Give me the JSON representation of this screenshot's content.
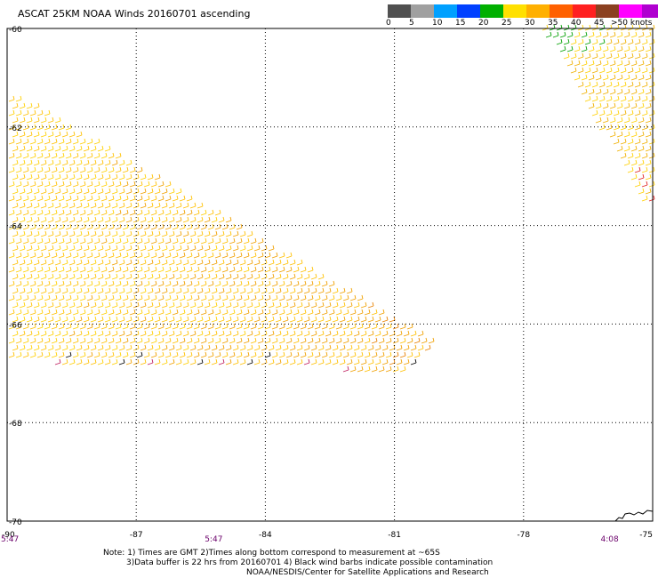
{
  "title": "ASCAT 25KM NOAA Winds 20160701 ascending",
  "legend": {
    "colors": [
      "#505050",
      "#a0a0a0",
      "#00a0ff",
      "#0040ff",
      "#00b000",
      "#ffe000",
      "#ffb000",
      "#ff6000",
      "#ff2020",
      "#8b4020",
      "#ff00ff",
      "#b000d0",
      "#4000a0"
    ],
    "labels": [
      "0",
      "5",
      "10",
      "15",
      "20",
      "25",
      "30",
      "35",
      "40",
      "45",
      ">50 knots"
    ],
    "label_values": [
      0,
      5,
      10,
      15,
      20,
      25,
      30,
      35,
      40,
      45,
      50
    ]
  },
  "map": {
    "lat_labels": [
      "-60",
      "-62",
      "-64",
      "-66",
      "-68",
      "-70"
    ],
    "lon_labels": [
      "-90",
      "-87",
      "-84",
      "-81",
      "-78",
      "-75"
    ],
    "lat_values": [
      -60,
      -62,
      -64,
      -66,
      -68,
      -70
    ],
    "lon_values": [
      -90,
      -87,
      -84,
      -81,
      -78,
      -75
    ],
    "lat_range": [
      -70,
      -60
    ],
    "lon_range": [
      -90,
      -75
    ],
    "gridlines": true,
    "swath_main_corners": [
      [
        -90,
        -61.3
      ],
      [
        -80.1,
        -66.4
      ],
      [
        -80.8,
        -67.0
      ],
      [
        -90,
        -66.8
      ]
    ],
    "swath_ne_corners": [
      [
        -77.6,
        -60.0
      ],
      [
        -75.0,
        -60.0
      ],
      [
        -75.0,
        -63.7
      ],
      [
        -75.3,
        -63.5
      ]
    ]
  },
  "time_labels": [
    "5:47",
    "5:47",
    "4:08"
  ],
  "time_label_lons": [
    -90,
    -85.2,
    -76.0
  ],
  "notes": [
    "Note: 1) Times are GMT 2)Times along bottom correspond to measurement at ~65S",
    "3)Data buffer is 22 hrs from 20160701 4) Black wind barbs indicate possible contamination",
    "NOAA/NESDIS/Center for Satellite Applications and Research"
  ]
}
